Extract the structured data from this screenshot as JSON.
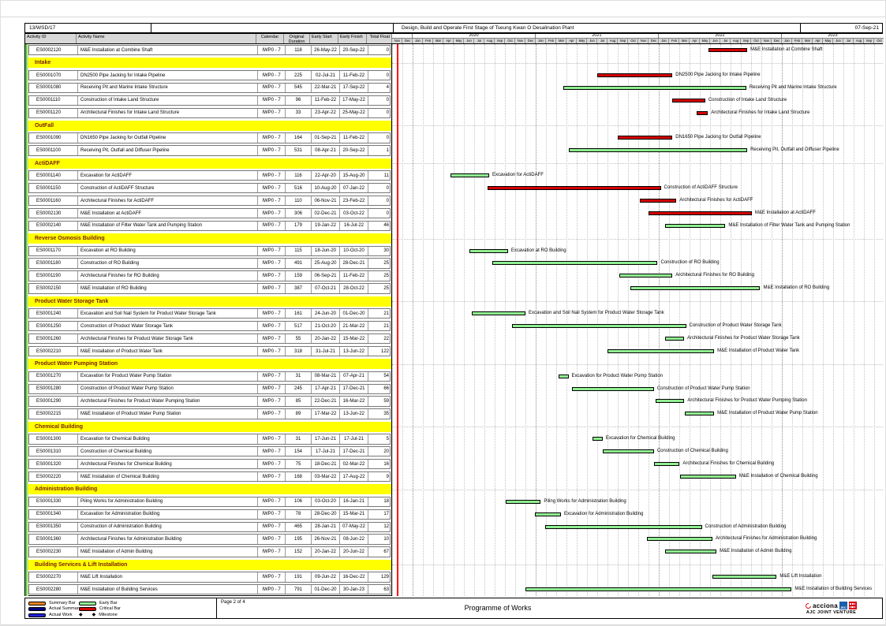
{
  "topbar": {
    "contract_no": "13/WSD/17",
    "title": "Design, Build and Operate First Stage of Tseung Kwan O Desalination Plant",
    "date": "07-Sep-21"
  },
  "columns": {
    "activity_id": "Activity ID",
    "activity_name": "Activity Name",
    "calendar": "Calendar",
    "original_duration": "Original Duration",
    "early_start": "Early Start",
    "early_finish": "Early Finish",
    "total_float": "Total Float"
  },
  "colors": {
    "critical_bar": "#d40000",
    "early_bar": "#90ee90",
    "summary_bar": "#e8821e",
    "actual_summary": "#00007a",
    "actual_work": "#2121d6",
    "section_bg": "#ffff00",
    "section_text": "#7a2000",
    "header_bg": "#d8d8d8",
    "data_date_line": "#ff0000"
  },
  "chart_data": {
    "type": "gantt",
    "title": "Programme of Works",
    "timeline": {
      "start": "Nov-2019",
      "end": "Oct-2023",
      "years": [
        {
          "label": "",
          "months": 2
        },
        {
          "label": "2020",
          "months": 12
        },
        {
          "label": "2021",
          "months": 12
        },
        {
          "label": "2022",
          "months": 12
        },
        {
          "label": "2023",
          "months": 10
        }
      ],
      "months": [
        "Nov",
        "Dec",
        "Jan",
        "Feb",
        "Mar",
        "Apr",
        "May",
        "Jun",
        "Jul",
        "Aug",
        "Sep",
        "Oct",
        "Nov",
        "Dec",
        "Jan",
        "Feb",
        "Mar",
        "Apr",
        "May",
        "Jun",
        "Jul",
        "Aug",
        "Sep",
        "Oct",
        "Nov",
        "Dec",
        "Jan",
        "Feb",
        "Mar",
        "Apr",
        "May",
        "Jun",
        "Jul",
        "Aug",
        "Sep",
        "Oct",
        "Nov",
        "Dec",
        "Jan",
        "Feb",
        "Mar",
        "Apr",
        "May",
        "Jun",
        "Jul",
        "Aug",
        "Sep",
        "Oct"
      ]
    },
    "rows": [
      {
        "type": "activity",
        "id": "ES0002120",
        "name": "M&E Installation at Combine Shaft",
        "calendar": "IWP0 - 7",
        "duration": "118",
        "start": "26-May-22",
        "finish": "20-Sep-22",
        "float": "0",
        "critical": true
      },
      {
        "type": "section",
        "label": "Intake"
      },
      {
        "type": "activity",
        "id": "ES0001070",
        "name": "DN2500 Pipe Jacking for Intake Pipeline",
        "calendar": "IWP0 - 7",
        "duration": "225",
        "start": "02-Jul-21",
        "finish": "11-Feb-22",
        "float": "0",
        "critical": true
      },
      {
        "type": "activity",
        "id": "ES0001080",
        "name": "Receiving Pit and Marine Intake Structure",
        "calendar": "IWP0 - 7",
        "duration": "545",
        "start": "22-Mar-21",
        "finish": "17-Sep-22",
        "float": "4",
        "critical": false
      },
      {
        "type": "activity",
        "id": "ES0001110",
        "name": "Construction of Intake Land Structure",
        "calendar": "IWP0 - 7",
        "duration": "96",
        "start": "11-Feb-22",
        "finish": "17-May-22",
        "float": "0",
        "critical": true
      },
      {
        "type": "activity",
        "id": "ES0001120",
        "name": "Architectural Finishes for Intake Land Structure",
        "calendar": "IWP0 - 7",
        "duration": "33",
        "start": "23-Apr-22",
        "finish": "25-May-22",
        "float": "0",
        "critical": true
      },
      {
        "type": "section",
        "label": "OutFall"
      },
      {
        "type": "activity",
        "id": "ES0001090",
        "name": "DN1650 Pipe Jacking for Outfall Pipeline",
        "calendar": "IWP0 - 7",
        "duration": "164",
        "start": "01-Sep-21",
        "finish": "11-Feb-22",
        "float": "0",
        "critical": true
      },
      {
        "type": "activity",
        "id": "ES0001100",
        "name": "Receiving Pit, Outfall and Diffuser Pipeline",
        "calendar": "IWP0 - 7",
        "duration": "531",
        "start": "08-Apr-21",
        "finish": "20-Sep-22",
        "float": "1",
        "critical": false
      },
      {
        "type": "section",
        "label": "ActiDAFF"
      },
      {
        "type": "activity",
        "id": "ES0001140",
        "name": "Excavation for ActiDAFF",
        "calendar": "IWP0 - 7",
        "duration": "116",
        "start": "22-Apr-20",
        "finish": "15-Aug-20",
        "float": "11",
        "critical": false
      },
      {
        "type": "activity",
        "id": "ES0001150",
        "name": "Construction of ActiDAFF Structure",
        "calendar": "IWP0 - 7",
        "duration": "516",
        "start": "10-Aug-20",
        "finish": "07-Jan-22",
        "float": "0",
        "critical": true
      },
      {
        "type": "activity",
        "id": "ES0001160",
        "name": "Architectural Finishes for ActiDAFF",
        "calendar": "IWP0 - 7",
        "duration": "110",
        "start": "06-Nov-21",
        "finish": "23-Feb-22",
        "float": "0",
        "critical": true
      },
      {
        "type": "activity",
        "id": "ES0002130",
        "name": "M&E Installation at ActiDAFF",
        "calendar": "IWP0 - 7",
        "duration": "306",
        "start": "02-Dec-21",
        "finish": "03-Oct-22",
        "float": "0",
        "critical": true
      },
      {
        "type": "activity",
        "id": "ES0002140",
        "name": "M&E Installation of Filter Water Tank and Pumping Station",
        "calendar": "IWP0 - 7",
        "duration": "179",
        "start": "19-Jan-22",
        "finish": "16-Jul-22",
        "float": "46",
        "critical": false
      },
      {
        "type": "section",
        "label": "Reverse Osmosis Building"
      },
      {
        "type": "activity",
        "id": "ES0001170",
        "name": "Excavation at RO Building",
        "calendar": "IWP0 - 7",
        "duration": "115",
        "start": "18-Jun-20",
        "finish": "10-Oct-20",
        "float": "30",
        "critical": false
      },
      {
        "type": "activity",
        "id": "ES0001180",
        "name": "Construction of RO Building",
        "calendar": "IWP0 - 7",
        "duration": "491",
        "start": "25-Aug-20",
        "finish": "28-Dec-21",
        "float": "25",
        "critical": false
      },
      {
        "type": "activity",
        "id": "ES0001190",
        "name": "Architectural Finishes for RO Building",
        "calendar": "IWP0 - 7",
        "duration": "159",
        "start": "06-Sep-21",
        "finish": "11-Feb-22",
        "float": "25",
        "critical": false
      },
      {
        "type": "activity",
        "id": "ES0002150",
        "name": "M&E Installation of RO Building",
        "calendar": "IWP0 - 7",
        "duration": "387",
        "start": "07-Oct-21",
        "finish": "28-Oct-22",
        "float": "25",
        "critical": false
      },
      {
        "type": "section",
        "label": "Product Water Storage Tank"
      },
      {
        "type": "activity",
        "id": "ES0001240",
        "name": "Excavation and Soil Nail System for Product Water Storage Tank",
        "calendar": "IWP0 - 7",
        "duration": "161",
        "start": "24-Jun-20",
        "finish": "01-Dec-20",
        "float": "21",
        "critical": false
      },
      {
        "type": "activity",
        "id": "ES0001250",
        "name": "Construction of Product Water Storage Tank",
        "calendar": "IWP0 - 7",
        "duration": "517",
        "start": "21-Oct-20",
        "finish": "21-Mar-22",
        "float": "21",
        "critical": false
      },
      {
        "type": "activity",
        "id": "ES0001260",
        "name": "Architectural Finishes for Product Water Storage Tank",
        "calendar": "IWP0 - 7",
        "duration": "55",
        "start": "20-Jan-22",
        "finish": "15-Mar-22",
        "float": "22",
        "critical": false
      },
      {
        "type": "activity",
        "id": "ES0002210",
        "name": "M&E Installation of Product Water Tank",
        "calendar": "IWP0 - 7",
        "duration": "318",
        "start": "31-Jul-21",
        "finish": "13-Jun-22",
        "float": "122",
        "critical": false
      },
      {
        "type": "section",
        "label": "Product Water Pumping Station"
      },
      {
        "type": "activity",
        "id": "ES0001270",
        "name": "Excavation for Product Water Pump Station",
        "calendar": "IWP0 - 7",
        "duration": "31",
        "start": "08-Mar-21",
        "finish": "07-Apr-21",
        "float": "54",
        "critical": false
      },
      {
        "type": "activity",
        "id": "ES0001280",
        "name": "Construction of Product Water Pump Station",
        "calendar": "IWP0 - 7",
        "duration": "245",
        "start": "17-Apr-21",
        "finish": "17-Dec-21",
        "float": "66",
        "critical": false
      },
      {
        "type": "activity",
        "id": "ES0001290",
        "name": "Architectural Finishes for Product Water Pumping Station",
        "calendar": "IWP0 - 7",
        "duration": "85",
        "start": "22-Dec-21",
        "finish": "16-Mar-22",
        "float": "59",
        "critical": false
      },
      {
        "type": "activity",
        "id": "ES0002215",
        "name": "M&E Installation of Product Water Pump Station",
        "calendar": "IWP0 - 7",
        "duration": "89",
        "start": "17-Mar-22",
        "finish": "13-Jun-22",
        "float": "35",
        "critical": false
      },
      {
        "type": "section",
        "label": "Chemical Building"
      },
      {
        "type": "activity",
        "id": "ES0001300",
        "name": "Excavation for Chemical Building",
        "calendar": "IWP0 - 7",
        "duration": "31",
        "start": "17-Jun-21",
        "finish": "17-Jul-21",
        "float": "5",
        "critical": false
      },
      {
        "type": "activity",
        "id": "ES0001310",
        "name": "Construction of Chemical Building",
        "calendar": "IWP0 - 7",
        "duration": "154",
        "start": "17-Jul-21",
        "finish": "17-Dec-21",
        "float": "20",
        "critical": false
      },
      {
        "type": "activity",
        "id": "ES0001320",
        "name": "Architectural Finishes for Chemical Building",
        "calendar": "IWP0 - 7",
        "duration": "75",
        "start": "18-Dec-21",
        "finish": "02-Mar-22",
        "float": "16",
        "critical": false
      },
      {
        "type": "activity",
        "id": "ES0002220",
        "name": "M&E Installation of Chemical Building",
        "calendar": "IWP0 - 7",
        "duration": "168",
        "start": "03-Mar-22",
        "finish": "17-Aug-22",
        "float": "9",
        "critical": false
      },
      {
        "type": "section",
        "label": "Administration Building"
      },
      {
        "type": "activity",
        "id": "ES0001330",
        "name": "Piling Works for Administration Building",
        "calendar": "IWP0 - 7",
        "duration": "106",
        "start": "03-Oct-20",
        "finish": "16-Jan-21",
        "float": "18",
        "critical": false
      },
      {
        "type": "activity",
        "id": "ES0001340",
        "name": "Excavation for Administration Building",
        "calendar": "IWP0 - 7",
        "duration": "78",
        "start": "28-Dec-20",
        "finish": "15-Mar-21",
        "float": "17",
        "critical": false
      },
      {
        "type": "activity",
        "id": "ES0001350",
        "name": "Construction of Administration Building",
        "calendar": "IWP0 - 7",
        "duration": "465",
        "start": "28-Jan-21",
        "finish": "07-May-22",
        "float": "12",
        "critical": false
      },
      {
        "type": "activity",
        "id": "ES0001360",
        "name": "Architectural Finishes for Administration Building",
        "calendar": "IWP0 - 7",
        "duration": "195",
        "start": "26-Nov-21",
        "finish": "08-Jun-22",
        "float": "10",
        "critical": false
      },
      {
        "type": "activity",
        "id": "ES0002230",
        "name": "M&E Installation of Admin Building",
        "calendar": "IWP0 - 7",
        "duration": "152",
        "start": "20-Jan-22",
        "finish": "20-Jun-22",
        "float": "67",
        "critical": false
      },
      {
        "type": "section",
        "label": "Building Services & Lift Installation"
      },
      {
        "type": "activity",
        "id": "ES0002270",
        "name": "M&E Lift Installation",
        "calendar": "IWP0 - 7",
        "duration": "191",
        "start": "09-Jun-22",
        "finish": "16-Dec-22",
        "float": "129",
        "critical": false
      },
      {
        "type": "activity",
        "id": "ES0002280",
        "name": "M&E Installation of Building Services",
        "calendar": "IWP0 - 7",
        "duration": "791",
        "start": "01-Dec-20",
        "finish": "30-Jan-23",
        "float": "63",
        "critical": false
      }
    ]
  },
  "legend": {
    "items": [
      {
        "label": "Summary Bar",
        "swatch": "#e8821e",
        "kind": "bar"
      },
      {
        "label": "Actual Summary",
        "swatch": "#00007a",
        "kind": "bar"
      },
      {
        "label": "Actual Work",
        "swatch": "#2121d6",
        "kind": "bar"
      },
      {
        "label": "Early Bar",
        "swatch": "#90ee90",
        "kind": "bar"
      },
      {
        "label": "Critical Bar",
        "swatch": "#d40000",
        "kind": "bar"
      },
      {
        "label": "Milestone",
        "swatch": "#000000",
        "kind": "milestone"
      }
    ]
  },
  "footer": {
    "page": "Page 2 of 4",
    "title": "Programme of Works",
    "logo": {
      "company": "acciona",
      "badge_1": "JEC",
      "jv_name": "AJC JOINT VENTURE"
    }
  }
}
